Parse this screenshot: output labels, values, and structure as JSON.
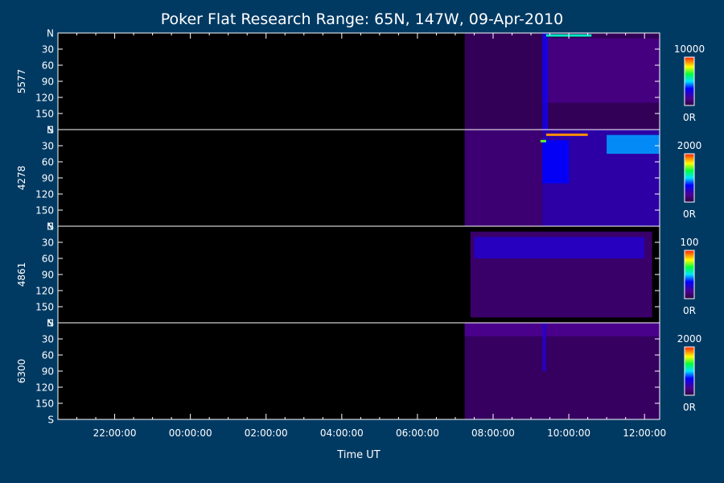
{
  "chart_data": {
    "type": "heatmap",
    "title": "Poker Flat Research Range: 65N, 147W, 09-Apr-2010",
    "xlabel": "Time UT",
    "x_tick_labels": [
      "22:00:00",
      "00:00:00",
      "02:00:00",
      "04:00:00",
      "06:00:00",
      "08:00:00",
      "10:00:00",
      "12:00:00"
    ],
    "x_range_hours": [
      20.5,
      36.4
    ],
    "y_tick_labels": [
      "N",
      "30",
      "60",
      "90",
      "120",
      "150",
      "S"
    ],
    "y_range": [
      0,
      180
    ],
    "colorscale": "rainbow",
    "data_start_hours": 31.25,
    "panels": [
      {
        "ylabel": "5577",
        "cbar_max": "10000",
        "cbar_min": "0R",
        "max_value": 10000,
        "features": [
          {
            "kind": "band",
            "x0": 31.25,
            "x1": 36.4,
            "y0": 0,
            "y1": 180,
            "level": 0.06
          },
          {
            "kind": "band",
            "x0": 33.3,
            "x1": 36.4,
            "y0": 10,
            "y1": 130,
            "level": 0.13
          },
          {
            "kind": "band",
            "x0": 33.3,
            "x1": 33.45,
            "y0": 0,
            "y1": 180,
            "level": 0.3
          },
          {
            "kind": "arc",
            "x0": 33.4,
            "x1": 34.6,
            "y": 3,
            "level": 0.55
          }
        ]
      },
      {
        "ylabel": "4278",
        "cbar_max": "2000",
        "cbar_min": "0R",
        "max_value": 2000,
        "features": [
          {
            "kind": "band",
            "x0": 31.25,
            "x1": 33.3,
            "y0": 0,
            "y1": 180,
            "level": 0.12
          },
          {
            "kind": "band",
            "x0": 33.3,
            "x1": 36.4,
            "y0": 0,
            "y1": 180,
            "level": 0.22
          },
          {
            "kind": "band",
            "x0": 33.3,
            "x1": 34.0,
            "y0": 20,
            "y1": 100,
            "level": 0.35
          },
          {
            "kind": "band",
            "x0": 35.0,
            "x1": 36.4,
            "y0": 10,
            "y1": 45,
            "level": 0.45
          },
          {
            "kind": "arc",
            "x0": 33.4,
            "x1": 34.5,
            "y": 8,
            "level": 0.9
          },
          {
            "kind": "arc",
            "x0": 33.25,
            "x1": 33.4,
            "y": 20,
            "level": 0.7
          }
        ]
      },
      {
        "ylabel": "4861",
        "cbar_max": "100",
        "cbar_min": "0R",
        "max_value": 100,
        "features": [
          {
            "kind": "band",
            "x0": 31.4,
            "x1": 36.2,
            "y0": 10,
            "y1": 170,
            "level": 0.1
          },
          {
            "kind": "band",
            "x0": 31.5,
            "x1": 36.0,
            "y0": 20,
            "y1": 60,
            "level": 0.25
          }
        ]
      },
      {
        "ylabel": "6300",
        "cbar_max": "2000",
        "cbar_min": "0R",
        "max_value": 2000,
        "features": [
          {
            "kind": "band",
            "x0": 31.25,
            "x1": 36.4,
            "y0": 0,
            "y1": 180,
            "level": 0.08
          },
          {
            "kind": "band",
            "x0": 31.25,
            "x1": 36.4,
            "y0": 0,
            "y1": 25,
            "level": 0.15
          },
          {
            "kind": "band",
            "x0": 33.3,
            "x1": 33.4,
            "y0": 0,
            "y1": 90,
            "level": 0.25
          }
        ]
      }
    ]
  }
}
